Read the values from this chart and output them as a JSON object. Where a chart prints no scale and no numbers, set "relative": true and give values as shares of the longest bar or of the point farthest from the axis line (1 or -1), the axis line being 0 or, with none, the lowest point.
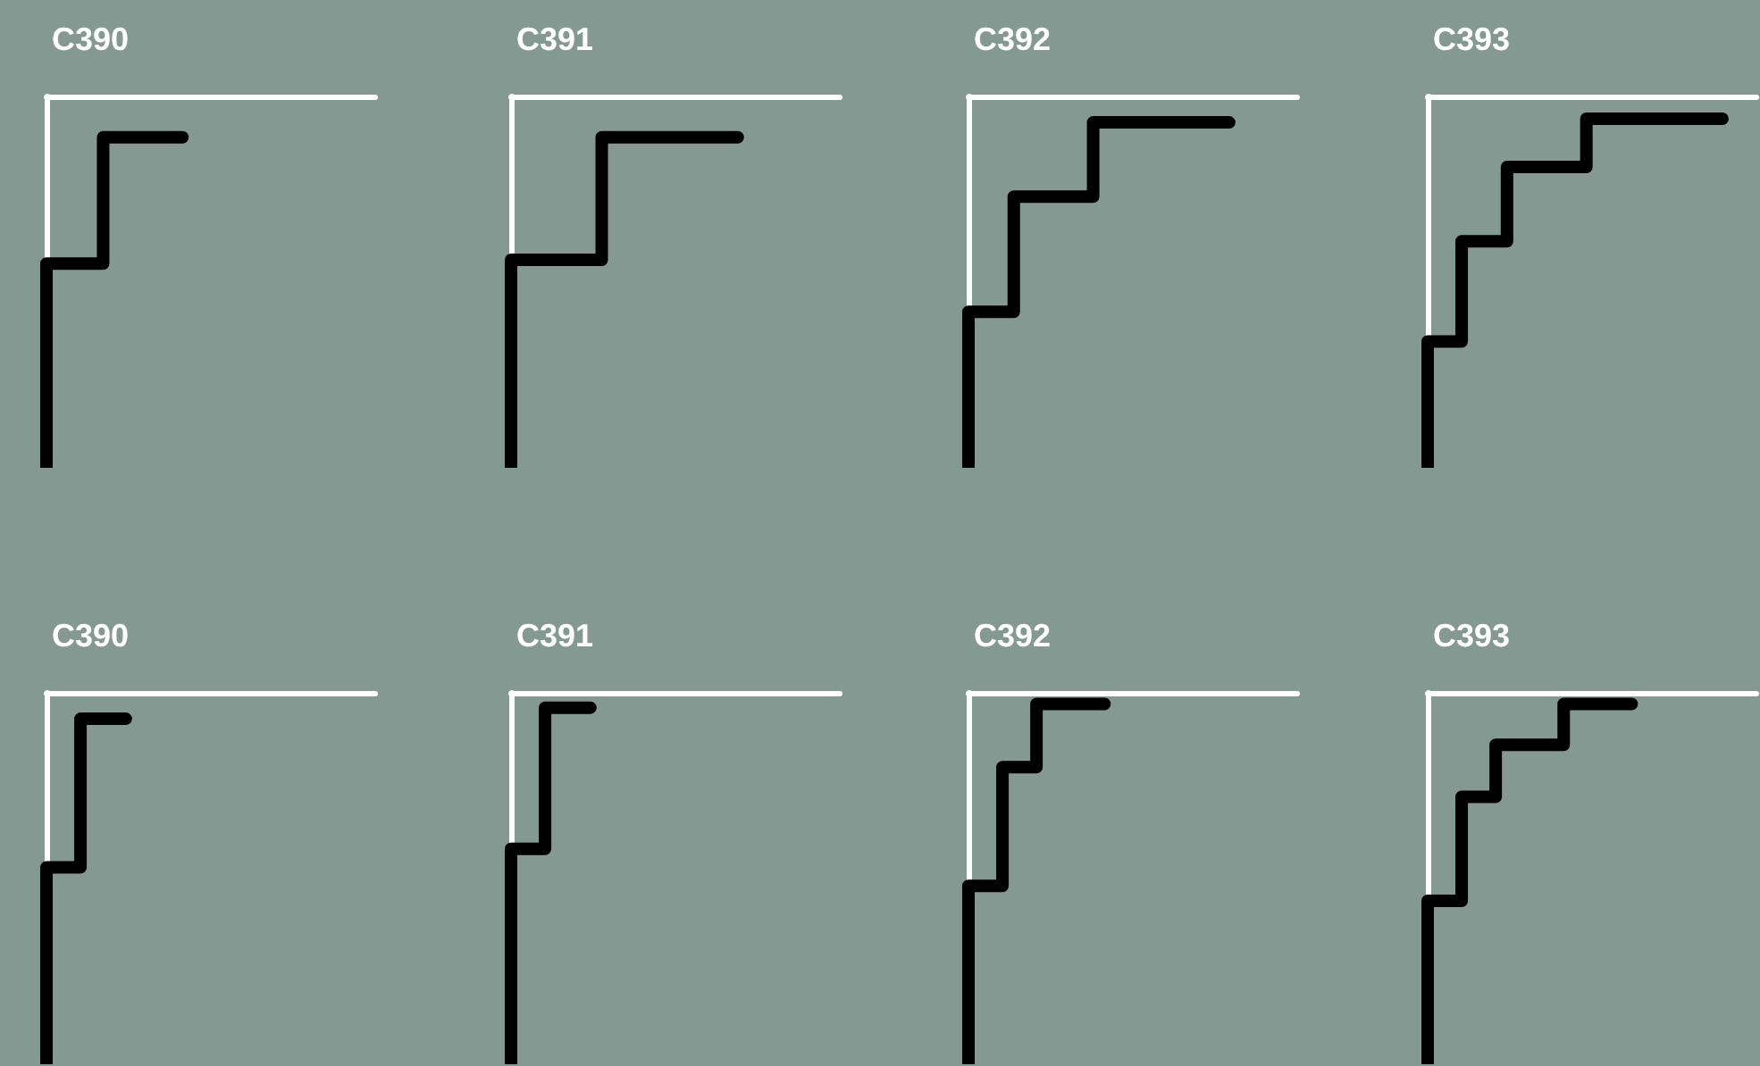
{
  "chart_data": [
    {
      "type": "step",
      "title": "C390",
      "relative": true,
      "color": "#000000",
      "categories": [
        null,
        null,
        null,
        null,
        null,
        null,
        null,
        null,
        null,
        null,
        null,
        null,
        null,
        null,
        null,
        null,
        null,
        null,
        null,
        null,
        null,
        null,
        null,
        null,
        null,
        null,
        null,
        null,
        null,
        null
      ],
      "values": [
        -1,
        -0.45,
        -0.45,
        -0.45,
        -0.45,
        -0.45,
        -0.11,
        -0.11,
        -0.11,
        -0.11,
        -0.11,
        -0.11,
        -0.11,
        null,
        null,
        null,
        null,
        null,
        null,
        null,
        null,
        null,
        null,
        null,
        null,
        null,
        null,
        null,
        null,
        null
      ]
    },
    {
      "type": "step",
      "title": "C391",
      "relative": true,
      "color": "#000000",
      "categories": [
        null,
        null,
        null,
        null,
        null,
        null,
        null,
        null,
        null,
        null,
        null,
        null,
        null,
        null,
        null,
        null,
        null,
        null,
        null,
        null,
        null,
        null,
        null,
        null,
        null,
        null,
        null,
        null,
        null,
        null
      ],
      "values": [
        -1,
        -0.44,
        -0.44,
        -0.44,
        -0.44,
        -0.44,
        -0.44,
        -0.44,
        -0.44,
        -0.11,
        -0.11,
        -0.11,
        -0.11,
        -0.11,
        -0.11,
        -0.11,
        -0.11,
        -0.11,
        -0.11,
        -0.11,
        -0.11,
        null,
        null,
        null,
        null,
        null,
        null,
        null,
        null,
        null
      ]
    },
    {
      "type": "step",
      "title": "C392",
      "relative": true,
      "color": "#000000",
      "categories": [
        null,
        null,
        null,
        null,
        null,
        null,
        null,
        null,
        null,
        null,
        null,
        null,
        null,
        null,
        null,
        null,
        null,
        null,
        null,
        null,
        null,
        null,
        null,
        null,
        null,
        null,
        null,
        null,
        null,
        null
      ],
      "values": [
        -1,
        -0.58,
        -0.58,
        -0.58,
        -0.58,
        -0.27,
        -0.27,
        -0.27,
        -0.27,
        -0.27,
        -0.27,
        -0.27,
        -0.07,
        -0.07,
        -0.07,
        -0.07,
        -0.07,
        -0.07,
        -0.07,
        -0.07,
        -0.07,
        -0.07,
        -0.07,
        -0.07,
        null,
        null,
        null,
        null,
        null,
        null
      ]
    },
    {
      "type": "step",
      "title": "C393",
      "relative": true,
      "color": "#000000",
      "categories": [
        null,
        null,
        null,
        null,
        null,
        null,
        null,
        null,
        null,
        null,
        null,
        null,
        null,
        null,
        null,
        null,
        null,
        null,
        null,
        null,
        null,
        null,
        null,
        null,
        null,
        null,
        null,
        null,
        null,
        null
      ],
      "values": [
        -1,
        -0.66,
        -0.66,
        -0.66,
        -0.39,
        -0.39,
        -0.39,
        -0.39,
        -0.19,
        -0.19,
        -0.19,
        -0.19,
        -0.19,
        -0.19,
        -0.19,
        -0.06,
        -0.06,
        -0.06,
        -0.06,
        -0.06,
        -0.06,
        -0.06,
        -0.06,
        -0.06,
        -0.06,
        -0.06,
        -0.06,
        null,
        null,
        null
      ]
    },
    {
      "type": "step",
      "title": "C390",
      "relative": true,
      "color": "#000000",
      "categories": [
        null,
        null,
        null,
        null,
        null,
        null,
        null,
        null,
        null,
        null,
        null,
        null,
        null,
        null,
        null,
        null,
        null,
        null,
        null,
        null,
        null,
        null,
        null,
        null,
        null,
        null,
        null,
        null,
        null,
        null
      ],
      "values": [
        -1,
        -0.47,
        -0.47,
        -0.47,
        -0.07,
        -0.07,
        -0.07,
        -0.07,
        null,
        null,
        null,
        null,
        null,
        null,
        null,
        null,
        null,
        null,
        null,
        null,
        null,
        null,
        null,
        null,
        null,
        null,
        null,
        null,
        null,
        null
      ]
    },
    {
      "type": "step",
      "title": "C391",
      "relative": true,
      "color": "#000000",
      "categories": [
        null,
        null,
        null,
        null,
        null,
        null,
        null,
        null,
        null,
        null,
        null,
        null,
        null,
        null,
        null,
        null,
        null,
        null,
        null,
        null,
        null,
        null,
        null,
        null,
        null,
        null,
        null,
        null,
        null,
        null
      ],
      "values": [
        -1,
        -0.42,
        -0.42,
        -0.42,
        -0.04,
        -0.04,
        -0.04,
        -0.04,
        null,
        null,
        null,
        null,
        null,
        null,
        null,
        null,
        null,
        null,
        null,
        null,
        null,
        null,
        null,
        null,
        null,
        null,
        null,
        null,
        null,
        null
      ]
    },
    {
      "type": "step",
      "title": "C392",
      "relative": true,
      "color": "#000000",
      "categories": [
        null,
        null,
        null,
        null,
        null,
        null,
        null,
        null,
        null,
        null,
        null,
        null,
        null,
        null,
        null,
        null,
        null,
        null,
        null,
        null,
        null,
        null,
        null,
        null,
        null,
        null,
        null,
        null,
        null,
        null
      ],
      "values": [
        -1,
        -0.52,
        -0.52,
        -0.52,
        -0.2,
        -0.2,
        -0.2,
        -0.03,
        -0.03,
        -0.03,
        -0.03,
        -0.03,
        -0.03,
        null,
        null,
        null,
        null,
        null,
        null,
        null,
        null,
        null,
        null,
        null,
        null,
        null,
        null,
        null,
        null,
        null
      ]
    },
    {
      "type": "step",
      "title": "C393",
      "relative": true,
      "color": "#000000",
      "categories": [
        null,
        null,
        null,
        null,
        null,
        null,
        null,
        null,
        null,
        null,
        null,
        null,
        null,
        null,
        null,
        null,
        null,
        null,
        null,
        null,
        null,
        null,
        null,
        null,
        null,
        null,
        null,
        null,
        null,
        null
      ],
      "values": [
        -1,
        -0.56,
        -0.56,
        -0.56,
        -0.28,
        -0.28,
        -0.28,
        -0.14,
        -0.14,
        -0.14,
        -0.14,
        -0.14,
        -0.14,
        -0.03,
        -0.03,
        -0.03,
        -0.03,
        -0.03,
        -0.03,
        null,
        null,
        null,
        null,
        null,
        null,
        null,
        null,
        null,
        null,
        null
      ]
    }
  ]
}
